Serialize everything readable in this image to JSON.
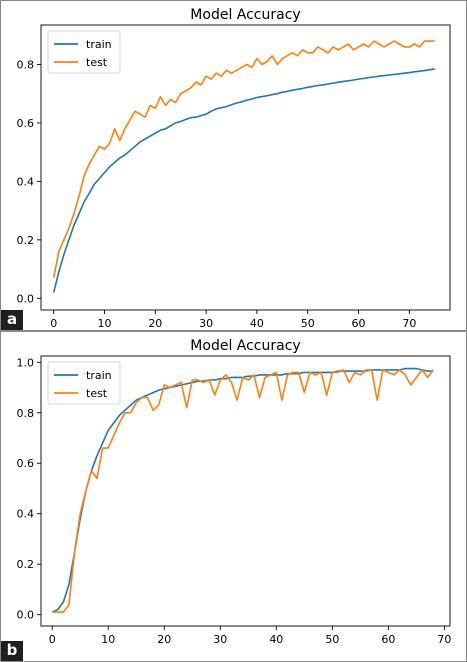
{
  "panels": [
    {
      "label": "a"
    },
    {
      "label": "b"
    }
  ],
  "chart_data": [
    {
      "type": "line",
      "title": "Model Accuracy",
      "xlabel": "",
      "ylabel": "",
      "xlim": [
        -2.5,
        78
      ],
      "ylim": [
        -0.04,
        0.935
      ],
      "xticks": [
        0,
        10,
        20,
        30,
        40,
        50,
        60,
        70
      ],
      "yticks": [
        0.0,
        0.2,
        0.4,
        0.6,
        0.8
      ],
      "grid": false,
      "legend": "top-left",
      "series": [
        {
          "name": "train",
          "color": "#1f77b4",
          "values": [
            0.02,
            0.09,
            0.15,
            0.2,
            0.25,
            0.29,
            0.33,
            0.36,
            0.39,
            0.41,
            0.43,
            0.45,
            0.465,
            0.48,
            0.49,
            0.505,
            0.52,
            0.535,
            0.545,
            0.555,
            0.565,
            0.575,
            0.58,
            0.59,
            0.6,
            0.605,
            0.612,
            0.618,
            0.62,
            0.625,
            0.63,
            0.64,
            0.648,
            0.652,
            0.656,
            0.662,
            0.668,
            0.672,
            0.678,
            0.682,
            0.687,
            0.69,
            0.693,
            0.697,
            0.7,
            0.705,
            0.708,
            0.712,
            0.715,
            0.718,
            0.722,
            0.725,
            0.728,
            0.73,
            0.733,
            0.736,
            0.739,
            0.742,
            0.744,
            0.747,
            0.75,
            0.752,
            0.755,
            0.757,
            0.76,
            0.762,
            0.764,
            0.766,
            0.768,
            0.77,
            0.772,
            0.775,
            0.777,
            0.779,
            0.782,
            0.784
          ]
        },
        {
          "name": "test",
          "color": "#ff7f0e",
          "values": [
            0.07,
            0.16,
            0.2,
            0.24,
            0.29,
            0.35,
            0.42,
            0.46,
            0.49,
            0.52,
            0.51,
            0.53,
            0.58,
            0.54,
            0.58,
            0.61,
            0.64,
            0.63,
            0.62,
            0.66,
            0.65,
            0.69,
            0.66,
            0.68,
            0.67,
            0.7,
            0.71,
            0.72,
            0.74,
            0.73,
            0.76,
            0.75,
            0.77,
            0.76,
            0.78,
            0.77,
            0.78,
            0.79,
            0.8,
            0.79,
            0.82,
            0.8,
            0.81,
            0.83,
            0.8,
            0.82,
            0.83,
            0.84,
            0.83,
            0.85,
            0.84,
            0.84,
            0.86,
            0.85,
            0.84,
            0.86,
            0.85,
            0.86,
            0.87,
            0.85,
            0.86,
            0.87,
            0.86,
            0.88,
            0.87,
            0.86,
            0.87,
            0.88,
            0.87,
            0.86,
            0.86,
            0.87,
            0.86,
            0.88,
            0.88,
            0.88
          ]
        }
      ]
    },
    {
      "type": "line",
      "title": "Model Accuracy",
      "xlabel": "",
      "ylabel": "",
      "xlim": [
        -2,
        71
      ],
      "ylim": [
        -0.045,
        1.025
      ],
      "xticks": [
        0,
        10,
        20,
        30,
        40,
        50,
        60,
        70
      ],
      "yticks": [
        0.0,
        0.2,
        0.4,
        0.6,
        0.8,
        1.0
      ],
      "grid": false,
      "legend": "top-left",
      "series": [
        {
          "name": "train",
          "color": "#1f77b4",
          "values": [
            0.01,
            0.02,
            0.05,
            0.12,
            0.25,
            0.38,
            0.49,
            0.57,
            0.63,
            0.68,
            0.73,
            0.76,
            0.79,
            0.81,
            0.83,
            0.85,
            0.86,
            0.87,
            0.88,
            0.89,
            0.895,
            0.9,
            0.905,
            0.91,
            0.915,
            0.92,
            0.925,
            0.925,
            0.93,
            0.93,
            0.935,
            0.935,
            0.94,
            0.94,
            0.94,
            0.945,
            0.945,
            0.95,
            0.95,
            0.95,
            0.95,
            0.95,
            0.955,
            0.955,
            0.955,
            0.96,
            0.96,
            0.96,
            0.96,
            0.96,
            0.96,
            0.965,
            0.965,
            0.965,
            0.965,
            0.965,
            0.965,
            0.97,
            0.97,
            0.97,
            0.97,
            0.97,
            0.97,
            0.975,
            0.975,
            0.975,
            0.97,
            0.965,
            0.965
          ]
        },
        {
          "name": "test",
          "color": "#ff7f0e",
          "values": [
            0.01,
            0.01,
            0.01,
            0.04,
            0.25,
            0.4,
            0.49,
            0.57,
            0.54,
            0.66,
            0.66,
            0.71,
            0.76,
            0.8,
            0.8,
            0.84,
            0.86,
            0.86,
            0.81,
            0.83,
            0.91,
            0.9,
            0.91,
            0.92,
            0.82,
            0.93,
            0.93,
            0.92,
            0.93,
            0.87,
            0.93,
            0.95,
            0.92,
            0.85,
            0.94,
            0.93,
            0.95,
            0.86,
            0.94,
            0.95,
            0.96,
            0.85,
            0.95,
            0.96,
            0.96,
            0.88,
            0.96,
            0.95,
            0.96,
            0.87,
            0.96,
            0.96,
            0.97,
            0.92,
            0.96,
            0.95,
            0.97,
            0.97,
            0.85,
            0.97,
            0.96,
            0.95,
            0.97,
            0.95,
            0.91,
            0.94,
            0.97,
            0.94,
            0.97
          ]
        }
      ]
    }
  ]
}
